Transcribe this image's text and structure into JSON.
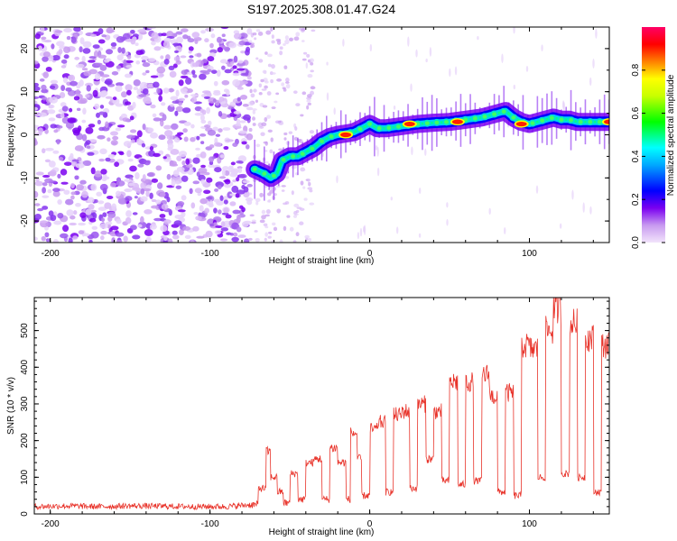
{
  "title": "S197.2025.308.01.47.G24",
  "chart_data": [
    {
      "type": "heatmap",
      "title": "S197.2025.308.01.47.G24",
      "xlabel": "Height of straight line (km)",
      "ylabel": "Frequency (Hz)",
      "xlim": [
        -210,
        150
      ],
      "ylim": [
        -25,
        25
      ],
      "xticks": [
        -200,
        -100,
        0,
        100
      ],
      "yticks": [
        -20,
        -10,
        0,
        10,
        20
      ],
      "colorbar": {
        "label": "Normalized spectral amplitude",
        "range": [
          0,
          1
        ],
        "ticks": [
          "0.0",
          "0.2",
          "0.4",
          "0.6",
          "0.8"
        ],
        "colormap": [
          "#d8b4f4",
          "#7a00f0",
          "#0000ff",
          "#00ffff",
          "#00ff00",
          "#ffff00",
          "#ff8000",
          "#ff0000",
          "#ff007f"
        ]
      },
      "ridge": {
        "x": [
          -72,
          -66,
          -62,
          -58,
          -55,
          -50,
          -45,
          -40,
          -35,
          -30,
          -25,
          -20,
          -15,
          -10,
          -5,
          0,
          5,
          10,
          20,
          30,
          40,
          50,
          60,
          70,
          80,
          85,
          90,
          95,
          100,
          105,
          110,
          115,
          120,
          125,
          130,
          135,
          140,
          145,
          150
        ],
        "y": [
          -8,
          -9,
          -10,
          -9,
          -6,
          -5,
          -5,
          -4,
          -3,
          -1.5,
          -0.5,
          0,
          0.3,
          0.6,
          1.5,
          2.5,
          1.5,
          1.5,
          2,
          2.5,
          2.8,
          3,
          3.5,
          4,
          5,
          5.5,
          4,
          3,
          2.5,
          3,
          3.5,
          4,
          3.5,
          3.5,
          3,
          3,
          3,
          3,
          3
        ]
      },
      "noise_region_x": [
        -210,
        -75
      ],
      "hot_spots": [
        {
          "x": -15,
          "y": 0
        },
        {
          "x": 25,
          "y": 2.5
        },
        {
          "x": 55,
          "y": 3
        },
        {
          "x": 95,
          "y": 2.5
        },
        {
          "x": 150,
          "y": 3
        }
      ]
    },
    {
      "type": "line",
      "xlabel": "Height of straight line (km)",
      "ylabel": "SNR (10 * v/v)",
      "xlim": [
        -210,
        150
      ],
      "ylim": [
        0,
        590
      ],
      "xticks": [
        -200,
        -100,
        0,
        100
      ],
      "yticks": [
        0,
        100,
        200,
        300,
        400,
        500
      ],
      "color": "#e8332a",
      "series": [
        {
          "name": "SNR",
          "x": [
            -210,
            -190,
            -170,
            -150,
            -130,
            -110,
            -90,
            -75,
            -70,
            -65,
            -62,
            -58,
            -54,
            -50,
            -45,
            -40,
            -35,
            -30,
            -25,
            -20,
            -15,
            -12,
            -8,
            -5,
            0,
            5,
            10,
            15,
            20,
            25,
            30,
            35,
            40,
            45,
            50,
            55,
            60,
            65,
            70,
            75,
            80,
            85,
            90,
            95,
            100,
            105,
            110,
            115,
            120,
            125,
            130,
            135,
            140,
            145,
            150
          ],
          "y": [
            20,
            22,
            20,
            22,
            21,
            20,
            20,
            25,
            70,
            170,
            100,
            60,
            30,
            110,
            40,
            140,
            150,
            40,
            180,
            140,
            40,
            220,
            150,
            50,
            230,
            250,
            60,
            270,
            280,
            70,
            300,
            150,
            280,
            90,
            360,
            80,
            360,
            90,
            380,
            320,
            60,
            330,
            50,
            460,
            450,
            100,
            500,
            560,
            110,
            520,
            100,
            480,
            60,
            460,
            430
          ]
        }
      ]
    }
  ]
}
